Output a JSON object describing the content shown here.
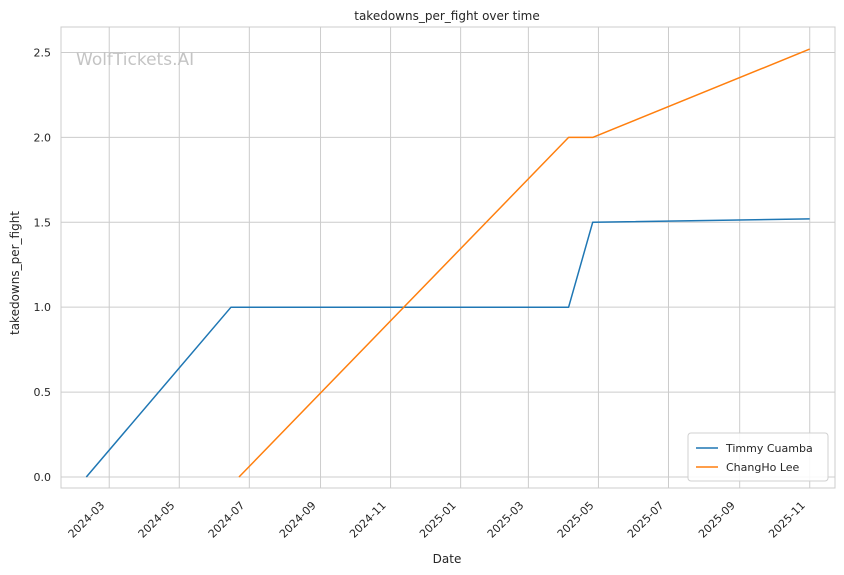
{
  "chart_data": {
    "type": "line",
    "title": "takedowns_per_fight over time",
    "xlabel": "Date",
    "ylabel": "takedowns_per_fight",
    "watermark": "WolfTickets.AI",
    "x_ticks": [
      "2024-03",
      "2024-05",
      "2024-07",
      "2024-09",
      "2024-11",
      "2025-01",
      "2025-03",
      "2025-05",
      "2025-07",
      "2025-09",
      "2025-11"
    ],
    "y_ticks": [
      "0.0",
      "0.5",
      "1.0",
      "1.5",
      "2.0",
      "2.5"
    ],
    "xlim": [
      "2024-01-19",
      "2025-11-23"
    ],
    "ylim": [
      -0.065,
      2.65
    ],
    "grid": true,
    "legend_position": "lower-right",
    "series": [
      {
        "name": "Timmy Cuamba",
        "color": "#1f77b4",
        "points": [
          {
            "x": "2024-02-10",
            "y": 0.0
          },
          {
            "x": "2024-06-15",
            "y": 1.0
          },
          {
            "x": "2025-04-05",
            "y": 1.0
          },
          {
            "x": "2025-04-26",
            "y": 1.5
          },
          {
            "x": "2025-11-01",
            "y": 1.52
          }
        ]
      },
      {
        "name": "ChangHo Lee",
        "color": "#ff7f0e",
        "points": [
          {
            "x": "2024-06-22",
            "y": 0.0
          },
          {
            "x": "2025-04-05",
            "y": 2.0
          },
          {
            "x": "2025-04-26",
            "y": 2.0
          },
          {
            "x": "2025-11-01",
            "y": 2.52
          }
        ]
      }
    ]
  }
}
